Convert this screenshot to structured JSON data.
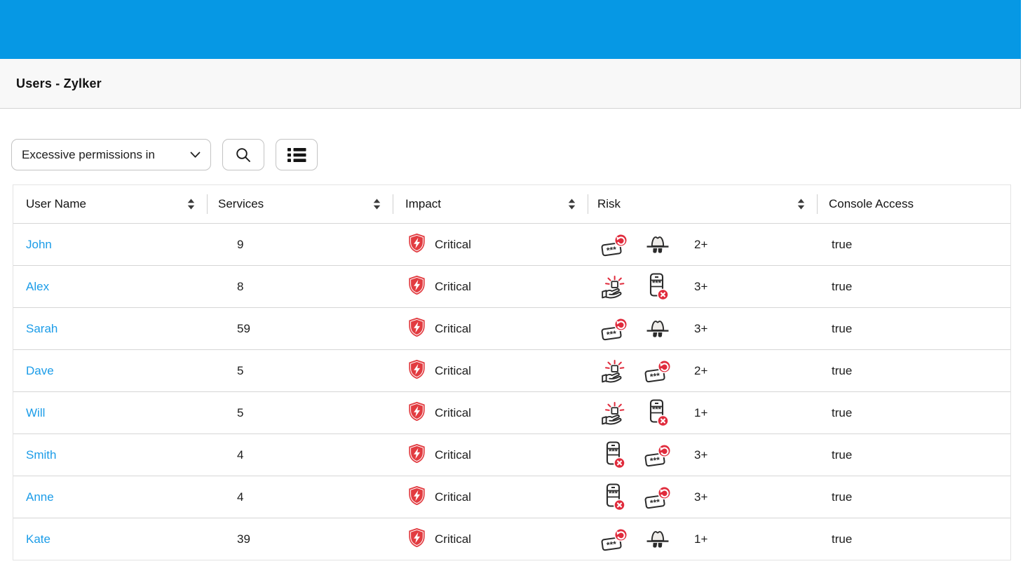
{
  "colors": {
    "brand_blue": "#0698e4",
    "link_blue": "#1b9ce8",
    "critical_red": "#e23c41",
    "badge_red": "#e02b3c"
  },
  "title_bar": {
    "title": "Users - Zylker"
  },
  "toolbar": {
    "filter_dropdown": {
      "value": "Excessive permissions in",
      "icon": "chevron-down-icon"
    },
    "search_button": {
      "icon": "search-icon"
    },
    "list_button": {
      "icon": "list-view-icon"
    }
  },
  "table": {
    "headers": [
      {
        "label": "User Name",
        "sortable": true
      },
      {
        "label": "Services",
        "sortable": true
      },
      {
        "label": "Impact",
        "sortable": true
      },
      {
        "label": "Risk",
        "sortable": true
      },
      {
        "label": "Console Access",
        "sortable": false
      }
    ],
    "rows": [
      {
        "name": "John",
        "services": "9",
        "impact": "Critical",
        "risk_icons": [
          "password-rotation",
          "incognito"
        ],
        "risk_count": "2+",
        "console_access": "true"
      },
      {
        "name": "Alex",
        "services": "8",
        "impact": "Critical",
        "risk_icons": [
          "privileged-access",
          "phone-password-disabled"
        ],
        "risk_count": "3+",
        "console_access": "true"
      },
      {
        "name": "Sarah",
        "services": "59",
        "impact": "Critical",
        "risk_icons": [
          "password-rotation",
          "incognito"
        ],
        "risk_count": "3+",
        "console_access": "true"
      },
      {
        "name": "Dave",
        "services": "5",
        "impact": "Critical",
        "risk_icons": [
          "privileged-access",
          "password-rotation"
        ],
        "risk_count": "2+",
        "console_access": "true"
      },
      {
        "name": "Will",
        "services": "5",
        "impact": "Critical",
        "risk_icons": [
          "privileged-access",
          "phone-password-disabled"
        ],
        "risk_count": "1+",
        "console_access": "true"
      },
      {
        "name": "Smith",
        "services": "4",
        "impact": "Critical",
        "risk_icons": [
          "phone-password-disabled",
          "password-rotation"
        ],
        "risk_count": "3+",
        "console_access": "true"
      },
      {
        "name": "Anne",
        "services": "4",
        "impact": "Critical",
        "risk_icons": [
          "phone-password-disabled",
          "password-rotation"
        ],
        "risk_count": "3+",
        "console_access": "true"
      },
      {
        "name": "Kate",
        "services": "39",
        "impact": "Critical",
        "risk_icons": [
          "password-rotation",
          "incognito"
        ],
        "risk_count": "1+",
        "console_access": "true"
      }
    ]
  }
}
